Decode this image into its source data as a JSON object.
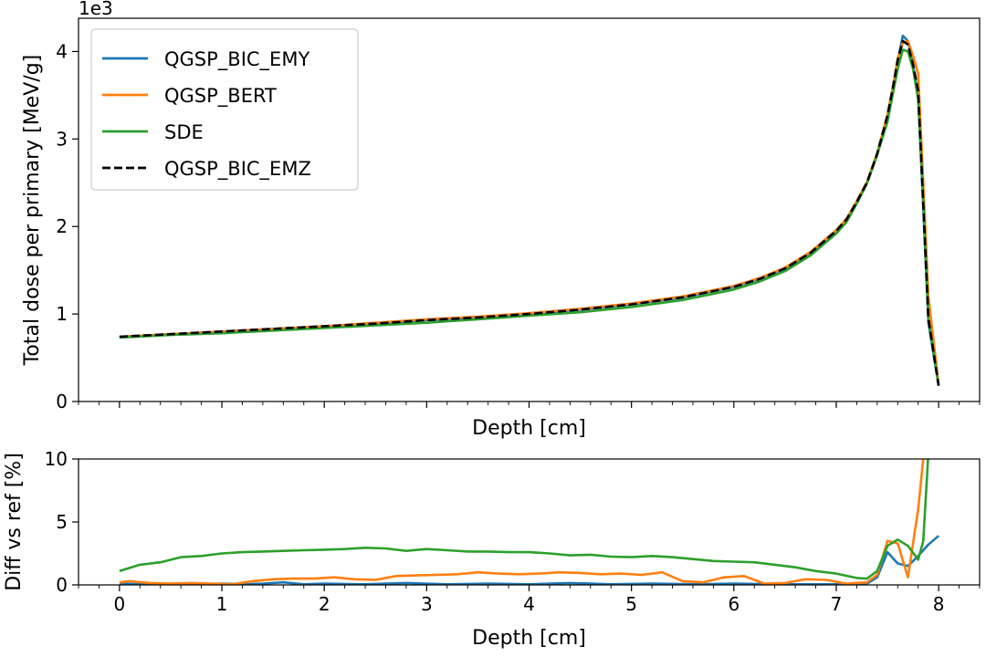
{
  "chart_data": [
    {
      "type": "line",
      "panel": "top",
      "xlabel": "Depth [cm]",
      "ylabel": "Total dose per primary [MeV/g]",
      "offset_text": "1e3",
      "xlim": [
        -0.4,
        8.4
      ],
      "ylim": [
        0,
        4.38
      ],
      "y_scale_label": "values in units of 1e3 MeV/g",
      "xticks": [
        0,
        1,
        2,
        3,
        4,
        5,
        6,
        7,
        8
      ],
      "yticks": [
        0,
        1,
        2,
        3,
        4
      ],
      "ytick_labels": [
        "0",
        "1",
        "2",
        "3",
        "4"
      ],
      "legend_position": "top-left",
      "series": [
        {
          "name": "QGSP_BIC_EMY",
          "color": "#1f77b4",
          "style": "solid",
          "x": [
            0,
            0.5,
            1,
            1.5,
            2,
            2.5,
            3,
            3.5,
            4,
            4.5,
            5,
            5.5,
            6,
            6.25,
            6.5,
            6.75,
            7,
            7.1,
            7.2,
            7.3,
            7.4,
            7.5,
            7.55,
            7.6,
            7.65,
            7.7,
            7.75,
            7.8,
            7.85,
            7.9,
            8.0
          ],
          "y": [
            0.74,
            0.77,
            0.8,
            0.83,
            0.86,
            0.89,
            0.93,
            0.96,
            1.0,
            1.05,
            1.11,
            1.19,
            1.31,
            1.4,
            1.52,
            1.7,
            1.95,
            2.08,
            2.28,
            2.5,
            2.82,
            3.25,
            3.55,
            3.9,
            4.18,
            4.12,
            3.85,
            3.5,
            2.2,
            0.9,
            0.18
          ]
        },
        {
          "name": "QGSP_BERT",
          "color": "#ff7f0e",
          "style": "solid",
          "x": [
            0,
            0.5,
            1,
            1.5,
            2,
            2.5,
            3,
            3.5,
            4,
            4.5,
            5,
            5.5,
            6,
            6.25,
            6.5,
            6.75,
            7,
            7.1,
            7.2,
            7.3,
            7.4,
            7.5,
            7.55,
            7.6,
            7.65,
            7.7,
            7.75,
            7.8,
            7.85,
            7.9,
            8.0
          ],
          "y": [
            0.74,
            0.77,
            0.8,
            0.83,
            0.86,
            0.9,
            0.94,
            0.97,
            1.01,
            1.06,
            1.12,
            1.2,
            1.32,
            1.41,
            1.53,
            1.71,
            1.96,
            2.09,
            2.29,
            2.51,
            2.84,
            3.28,
            3.58,
            3.92,
            4.1,
            4.12,
            3.95,
            3.75,
            2.5,
            1.2,
            0.2
          ]
        },
        {
          "name": "SDE",
          "color": "#2ca02c",
          "style": "solid",
          "x": [
            0,
            0.5,
            1,
            1.5,
            2,
            2.5,
            3,
            3.5,
            4,
            4.5,
            5,
            5.5,
            6,
            6.25,
            6.5,
            6.75,
            7,
            7.1,
            7.2,
            7.3,
            7.4,
            7.5,
            7.55,
            7.6,
            7.65,
            7.7,
            7.75,
            7.8,
            7.85,
            7.9,
            8.0
          ],
          "y": [
            0.73,
            0.76,
            0.78,
            0.81,
            0.84,
            0.87,
            0.9,
            0.94,
            0.98,
            1.02,
            1.08,
            1.16,
            1.28,
            1.37,
            1.49,
            1.67,
            1.92,
            2.05,
            2.26,
            2.49,
            2.82,
            3.2,
            3.5,
            3.8,
            4.02,
            4.0,
            3.8,
            3.45,
            2.3,
            0.95,
            0.18
          ]
        },
        {
          "name": "QGSP_BIC_EMZ",
          "color": "#000000",
          "style": "dashed",
          "x": [
            0,
            0.5,
            1,
            1.5,
            2,
            2.5,
            3,
            3.5,
            4,
            4.5,
            5,
            5.5,
            6,
            6.25,
            6.5,
            6.75,
            7,
            7.1,
            7.2,
            7.3,
            7.4,
            7.5,
            7.55,
            7.6,
            7.65,
            7.7,
            7.75,
            7.8,
            7.85,
            7.9,
            8.0
          ],
          "y": [
            0.74,
            0.77,
            0.8,
            0.83,
            0.86,
            0.89,
            0.93,
            0.96,
            1.0,
            1.05,
            1.11,
            1.19,
            1.31,
            1.4,
            1.52,
            1.7,
            1.95,
            2.08,
            2.28,
            2.5,
            2.83,
            3.27,
            3.57,
            3.9,
            4.12,
            4.08,
            3.85,
            3.55,
            2.25,
            0.95,
            0.18
          ]
        }
      ]
    },
    {
      "type": "line",
      "panel": "bottom",
      "xlabel": "Depth [cm]",
      "ylabel": "Diff vs ref [%]",
      "xlim": [
        -0.4,
        8.4
      ],
      "ylim": [
        0,
        10
      ],
      "xticks": [
        0,
        1,
        2,
        3,
        4,
        5,
        6,
        7,
        8
      ],
      "xtick_labels": [
        "0",
        "1",
        "2",
        "3",
        "4",
        "5",
        "6",
        "7",
        "8"
      ],
      "yticks": [
        0,
        5,
        10
      ],
      "ytick_labels": [
        "0",
        "5",
        "10"
      ],
      "series": [
        {
          "name": "QGSP_BIC_EMY",
          "color": "#1f77b4",
          "x": [
            0,
            0.2,
            0.4,
            0.6,
            0.8,
            1.0,
            1.2,
            1.4,
            1.6,
            1.8,
            2.0,
            2.4,
            2.8,
            3.2,
            3.6,
            4.0,
            4.4,
            4.8,
            5.2,
            5.6,
            6.0,
            6.4,
            6.8,
            7.0,
            7.2,
            7.3,
            7.4,
            7.5,
            7.6,
            7.7,
            7.8,
            7.9,
            8.0
          ],
          "y": [
            0.1,
            0.05,
            0.05,
            0.1,
            0.05,
            0.1,
            0.05,
            0.1,
            0.2,
            0.05,
            0.1,
            0.05,
            0.15,
            0.05,
            0.1,
            0.05,
            0.15,
            0.05,
            0.1,
            0.05,
            0.1,
            0.05,
            0.05,
            0.05,
            0.1,
            0.1,
            0.6,
            2.6,
            1.7,
            1.5,
            2.3,
            3.2,
            3.9
          ]
        },
        {
          "name": "QGSP_BERT",
          "color": "#ff7f0e",
          "x": [
            0,
            0.1,
            0.3,
            0.5,
            0.7,
            0.9,
            1.1,
            1.3,
            1.5,
            1.7,
            1.9,
            2.1,
            2.3,
            2.5,
            2.7,
            2.9,
            3.1,
            3.3,
            3.5,
            3.7,
            3.9,
            4.1,
            4.3,
            4.5,
            4.7,
            4.9,
            5.1,
            5.3,
            5.5,
            5.7,
            5.9,
            6.1,
            6.3,
            6.5,
            6.7,
            6.9,
            7.1,
            7.3,
            7.4,
            7.5,
            7.6,
            7.7,
            7.8,
            7.85,
            7.9
          ],
          "y": [
            0.2,
            0.3,
            0.15,
            0.1,
            0.15,
            0.1,
            0.05,
            0.3,
            0.45,
            0.5,
            0.5,
            0.6,
            0.45,
            0.4,
            0.7,
            0.75,
            0.8,
            0.85,
            1.0,
            0.9,
            0.85,
            0.9,
            1.0,
            0.95,
            0.85,
            0.9,
            0.8,
            1.0,
            0.3,
            0.2,
            0.6,
            0.7,
            0.1,
            0.15,
            0.45,
            0.4,
            0.1,
            0.2,
            0.8,
            3.5,
            3.3,
            0.6,
            6.0,
            10.0,
            10.5
          ]
        },
        {
          "name": "SDE",
          "color": "#2ca02c",
          "x": [
            0,
            0.2,
            0.4,
            0.6,
            0.8,
            1.0,
            1.2,
            1.4,
            1.6,
            1.8,
            2.0,
            2.2,
            2.4,
            2.6,
            2.8,
            3.0,
            3.2,
            3.4,
            3.6,
            3.8,
            4.0,
            4.2,
            4.4,
            4.6,
            4.8,
            5.0,
            5.2,
            5.4,
            5.6,
            5.8,
            6.0,
            6.2,
            6.4,
            6.6,
            6.8,
            7.0,
            7.2,
            7.3,
            7.4,
            7.5,
            7.6,
            7.7,
            7.8,
            7.85,
            7.9
          ],
          "y": [
            1.1,
            1.6,
            1.8,
            2.2,
            2.3,
            2.5,
            2.6,
            2.65,
            2.7,
            2.75,
            2.8,
            2.85,
            2.95,
            2.9,
            2.7,
            2.85,
            2.75,
            2.65,
            2.65,
            2.6,
            2.6,
            2.5,
            2.35,
            2.4,
            2.25,
            2.2,
            2.3,
            2.2,
            2.05,
            1.9,
            1.85,
            1.8,
            1.6,
            1.4,
            1.1,
            0.9,
            0.55,
            0.5,
            1.1,
            3.1,
            3.6,
            3.1,
            2.0,
            3.5,
            10.5
          ]
        }
      ]
    }
  ]
}
